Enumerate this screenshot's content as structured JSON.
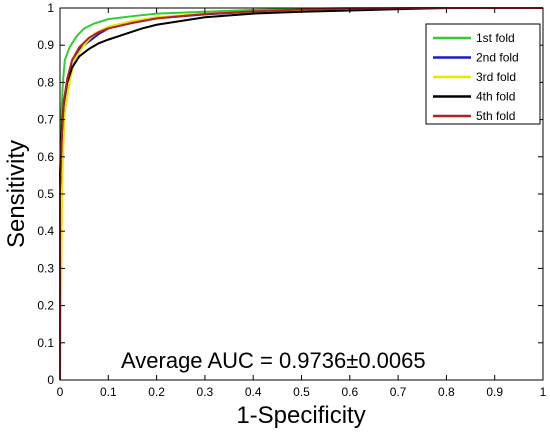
{
  "chart_data": {
    "type": "line",
    "title": "",
    "xlabel": "1-Specificity",
    "ylabel": "Sensitivity",
    "xlim": [
      0,
      1
    ],
    "ylim": [
      0,
      1
    ],
    "xticks": [
      "0",
      "0.1",
      "0.2",
      "0.3",
      "0.4",
      "0.5",
      "0.6",
      "0.7",
      "0.8",
      "0.9",
      "1"
    ],
    "yticks": [
      "0",
      "0.1",
      "0.2",
      "0.3",
      "0.4",
      "0.5",
      "0.6",
      "0.7",
      "0.8",
      "0.9",
      "1"
    ],
    "grid": false,
    "legend_position": "top-right",
    "annotation": "Average AUC = 0.9736±0.0065",
    "series": [
      {
        "name": "1st fold",
        "color": "#33cc33",
        "points": [
          [
            0,
            0
          ],
          [
            0,
            0.55
          ],
          [
            0.003,
            0.72
          ],
          [
            0.006,
            0.8
          ],
          [
            0.01,
            0.86
          ],
          [
            0.02,
            0.895
          ],
          [
            0.035,
            0.925
          ],
          [
            0.05,
            0.945
          ],
          [
            0.07,
            0.958
          ],
          [
            0.1,
            0.97
          ],
          [
            0.15,
            0.978
          ],
          [
            0.2,
            0.985
          ],
          [
            0.3,
            0.99
          ],
          [
            0.4,
            0.995
          ],
          [
            0.5,
            0.998
          ],
          [
            0.6,
            1
          ],
          [
            1,
            1
          ]
        ]
      },
      {
        "name": "2nd fold",
        "color": "#1a1acc",
        "points": [
          [
            0,
            0
          ],
          [
            0,
            0.5
          ],
          [
            0.004,
            0.65
          ],
          [
            0.008,
            0.74
          ],
          [
            0.015,
            0.8
          ],
          [
            0.025,
            0.86
          ],
          [
            0.04,
            0.89
          ],
          [
            0.06,
            0.91
          ],
          [
            0.08,
            0.93
          ],
          [
            0.1,
            0.945
          ],
          [
            0.15,
            0.96
          ],
          [
            0.2,
            0.972
          ],
          [
            0.3,
            0.983
          ],
          [
            0.4,
            0.99
          ],
          [
            0.5,
            0.995
          ],
          [
            0.65,
            0.998
          ],
          [
            0.75,
            1
          ],
          [
            1,
            1
          ]
        ]
      },
      {
        "name": "3rd fold",
        "color": "#e6e600",
        "points": [
          [
            0,
            0
          ],
          [
            0.002,
            0.2
          ],
          [
            0.004,
            0.45
          ],
          [
            0.006,
            0.6
          ],
          [
            0.01,
            0.72
          ],
          [
            0.02,
            0.8
          ],
          [
            0.03,
            0.86
          ],
          [
            0.05,
            0.9
          ],
          [
            0.07,
            0.93
          ],
          [
            0.1,
            0.95
          ],
          [
            0.15,
            0.965
          ],
          [
            0.2,
            0.975
          ],
          [
            0.3,
            0.985
          ],
          [
            0.45,
            0.993
          ],
          [
            0.6,
            0.997
          ],
          [
            0.85,
            1
          ],
          [
            1,
            1
          ]
        ]
      },
      {
        "name": "4th fold",
        "color": "#000000",
        "points": [
          [
            0,
            0
          ],
          [
            0,
            0.55
          ],
          [
            0.004,
            0.68
          ],
          [
            0.008,
            0.75
          ],
          [
            0.015,
            0.8
          ],
          [
            0.025,
            0.84
          ],
          [
            0.04,
            0.87
          ],
          [
            0.06,
            0.89
          ],
          [
            0.08,
            0.905
          ],
          [
            0.1,
            0.915
          ],
          [
            0.13,
            0.928
          ],
          [
            0.17,
            0.945
          ],
          [
            0.2,
            0.955
          ],
          [
            0.3,
            0.975
          ],
          [
            0.4,
            0.985
          ],
          [
            0.5,
            0.99
          ],
          [
            0.65,
            0.995
          ],
          [
            0.8,
            1
          ],
          [
            1,
            1
          ]
        ]
      },
      {
        "name": "5th fold",
        "color": "#b22222",
        "points": [
          [
            0,
            0
          ],
          [
            0,
            0.52
          ],
          [
            0.004,
            0.66
          ],
          [
            0.008,
            0.75
          ],
          [
            0.015,
            0.81
          ],
          [
            0.025,
            0.86
          ],
          [
            0.04,
            0.895
          ],
          [
            0.06,
            0.92
          ],
          [
            0.08,
            0.935
          ],
          [
            0.1,
            0.945
          ],
          [
            0.15,
            0.96
          ],
          [
            0.2,
            0.972
          ],
          [
            0.3,
            0.984
          ],
          [
            0.4,
            0.991
          ],
          [
            0.5,
            0.996
          ],
          [
            0.65,
            0.999
          ],
          [
            0.8,
            1
          ],
          [
            1,
            1
          ]
        ]
      }
    ]
  }
}
